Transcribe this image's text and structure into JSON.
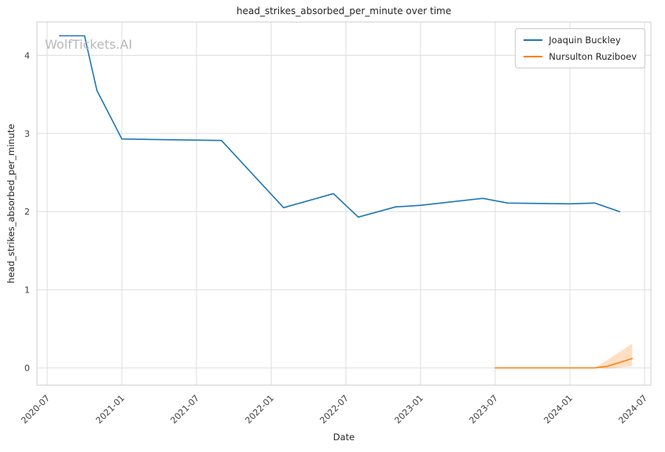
{
  "chart_data": {
    "type": "line",
    "title": "head_strikes_absorbed_per_minute over time",
    "xlabel": "Date",
    "ylabel": "head_strikes_absorbed_per_minute",
    "watermark": "WolfTickets.AI",
    "x_ticks": [
      "2020-07",
      "2021-01",
      "2021-07",
      "2022-01",
      "2022-07",
      "2023-01",
      "2023-07",
      "2024-01",
      "2024-07"
    ],
    "y_ticks": [
      0,
      1,
      2,
      3,
      4
    ],
    "ylim": [
      -0.2,
      4.42
    ],
    "grid": true,
    "legend_position": "upper right",
    "style": {
      "grid_color": "#dddddd",
      "border_color": "#cccccc",
      "tick_label_color": "#3d3d3d",
      "band_opacity": 0.25
    },
    "series": [
      {
        "name": "Joaquin Buckley",
        "color": "#1f77b4",
        "points": [
          [
            "2020-08",
            4.25
          ],
          [
            "2020-10",
            4.25
          ],
          [
            "2020-11",
            3.55
          ],
          [
            "2021-01",
            2.93
          ],
          [
            "2021-05",
            2.92
          ],
          [
            "2021-09",
            2.91
          ],
          [
            "2022-02",
            2.05
          ],
          [
            "2022-06",
            2.23
          ],
          [
            "2022-08",
            1.93
          ],
          [
            "2022-11",
            2.06
          ],
          [
            "2023-01",
            2.08
          ],
          [
            "2023-06",
            2.17
          ],
          [
            "2023-08",
            2.11
          ],
          [
            "2024-01",
            2.1
          ],
          [
            "2024-03",
            2.11
          ],
          [
            "2024-05",
            2.0
          ]
        ]
      },
      {
        "name": "Nursulton Ruziboev",
        "color": "#ff7f0e",
        "points": [
          [
            "2023-07",
            0.0
          ],
          [
            "2024-03",
            0.0
          ],
          [
            "2024-04",
            0.02
          ],
          [
            "2024-06",
            0.12
          ]
        ],
        "band": [
          {
            "date": "2023-07",
            "lo": 0.0,
            "hi": 0.0
          },
          {
            "date": "2024-03",
            "lo": 0.0,
            "hi": 0.0
          },
          {
            "date": "2024-04",
            "lo": -0.01,
            "hi": 0.1
          },
          {
            "date": "2024-06",
            "lo": 0.02,
            "hi": 0.31
          }
        ]
      }
    ]
  }
}
